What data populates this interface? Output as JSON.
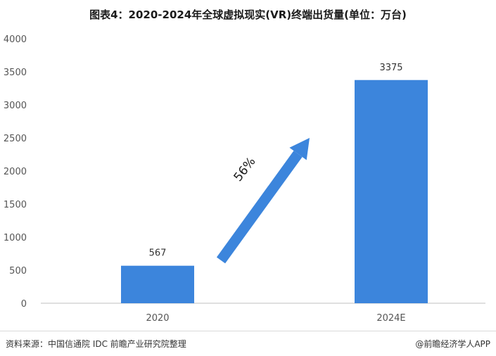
{
  "title": "图表4：2020-2024年全球虚拟现实(VR)终端出货量(单位：万台)",
  "source": "资料来源：中国信通院 IDC 前瞻产业研究院整理",
  "brand": "@前瞻经济学人APP",
  "colors": {
    "bar": "#3c85dc",
    "arrow": "#3c85dc",
    "axis": "#bfbfbf"
  },
  "chart_data": {
    "type": "bar",
    "categories": [
      "2020",
      "2024E"
    ],
    "values": [
      567,
      3375
    ],
    "ylim": [
      0,
      4000
    ],
    "yticks": [
      0,
      500,
      1000,
      1500,
      2000,
      2500,
      3000,
      3500,
      4000
    ],
    "annotation": {
      "text": "56%",
      "shape": "arrow-up-right",
      "from_category": "2020",
      "to_category": "2024E"
    },
    "grid": false,
    "legend": "none"
  }
}
